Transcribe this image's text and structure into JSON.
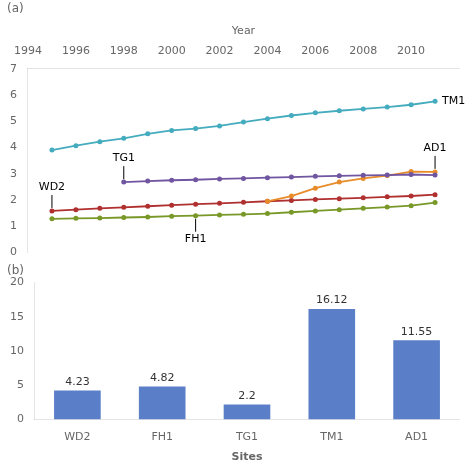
{
  "chart_data": [
    {
      "type": "line",
      "title": "(a)",
      "xlabel": "Year",
      "x": [
        1995,
        1996,
        1997,
        1998,
        1999,
        2000,
        2001,
        2002,
        2003,
        2004,
        2005,
        2006,
        2007,
        2008,
        2009,
        2010,
        2011
      ],
      "series": [
        {
          "name": "TM1",
          "color": "#45ABBE",
          "values": [
            3.9,
            4.07,
            4.22,
            4.35,
            4.52,
            4.65,
            4.72,
            4.82,
            4.97,
            5.1,
            5.22,
            5.32,
            5.4,
            5.47,
            5.54,
            5.63,
            5.76
          ]
        },
        {
          "name": "TG1",
          "color": "#7055A0",
          "values": [
            null,
            null,
            null,
            2.68,
            2.72,
            2.75,
            2.77,
            2.8,
            2.82,
            2.85,
            2.87,
            2.9,
            2.92,
            2.94,
            2.95,
            2.97,
            2.95
          ]
        },
        {
          "name": "AD1",
          "color": "#E88C2A",
          "values": [
            null,
            null,
            null,
            null,
            null,
            null,
            null,
            null,
            null,
            1.95,
            2.15,
            2.45,
            2.68,
            2.82,
            2.93,
            3.08,
            3.07
          ]
        },
        {
          "name": "WD2",
          "color": "#B03030",
          "values": [
            1.58,
            1.63,
            1.68,
            1.72,
            1.76,
            1.8,
            1.84,
            1.87,
            1.91,
            1.95,
            1.98,
            2.02,
            2.05,
            2.08,
            2.12,
            2.15,
            2.2
          ]
        },
        {
          "name": "FH1",
          "color": "#789828",
          "values": [
            1.28,
            1.3,
            1.31,
            1.33,
            1.35,
            1.38,
            1.4,
            1.43,
            1.45,
            1.48,
            1.53,
            1.58,
            1.63,
            1.68,
            1.73,
            1.78,
            1.9
          ]
        }
      ],
      "annotations": [
        {
          "text": "TM1",
          "x": 2011,
          "y": 5.76,
          "position": "right"
        },
        {
          "text": "AD1",
          "x": 2011,
          "y": 3.07,
          "position": "above"
        },
        {
          "text": "WD2",
          "x": 1995,
          "y": 1.58,
          "position": "above"
        },
        {
          "text": "TG1",
          "x": 1998,
          "y": 2.68,
          "position": "above"
        },
        {
          "text": "FH1",
          "x": 2001,
          "y": 1.4,
          "position": "below"
        }
      ],
      "marker": "circle",
      "xlim": [
        1994,
        2012
      ],
      "xticks": [
        1994,
        1996,
        1998,
        2000,
        2002,
        2004,
        2006,
        2008,
        2010
      ],
      "ylim": [
        0,
        7
      ],
      "yticks": [
        0,
        1,
        2,
        3,
        4,
        5,
        6,
        7
      ],
      "grid": false
    },
    {
      "type": "bar",
      "title": "(b)",
      "xlabel": "Sites",
      "categories": [
        "WD2",
        "FH1",
        "TG1",
        "TM1",
        "AD1"
      ],
      "values": [
        4.23,
        4.82,
        2.2,
        16.12,
        11.55
      ],
      "color": "#5B7EC9",
      "data_labels": true,
      "ylim": [
        0,
        20
      ],
      "yticks": [
        0,
        5,
        10,
        15,
        20
      ],
      "grid": false
    }
  ]
}
